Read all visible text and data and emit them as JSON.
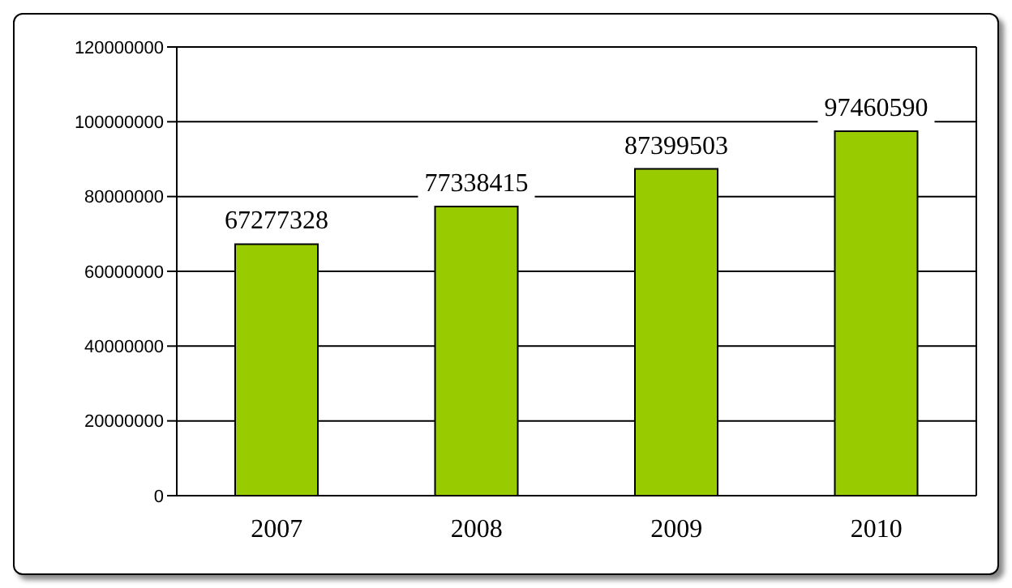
{
  "chart_data": {
    "type": "bar",
    "categories": [
      "2007",
      "2008",
      "2009",
      "2010"
    ],
    "values": [
      67277328,
      77338415,
      87399503,
      97460590
    ],
    "color": "#99cc00",
    "ylim": [
      0,
      120000000
    ],
    "yticks": [
      0,
      20000000,
      40000000,
      60000000,
      80000000,
      100000000,
      120000000
    ],
    "grid": "y",
    "data_labels": true
  }
}
